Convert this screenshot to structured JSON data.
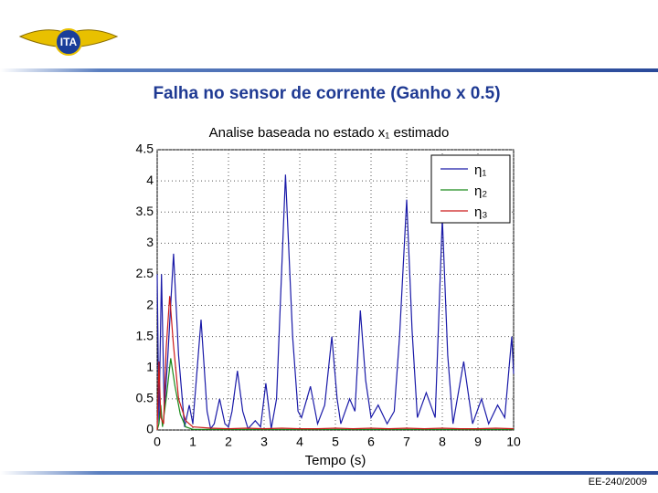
{
  "slide_title": "Falha no sensor de corrente (Ganho x 0.5)",
  "footer": "EE-240/2009",
  "chart_data": {
    "type": "line",
    "title": "Analise baseada no estado x₁ estimado",
    "x_label": "Tempo (s)",
    "xlim": [
      0,
      10
    ],
    "xticks": [
      0,
      1,
      2,
      3,
      4,
      5,
      6,
      7,
      8,
      9,
      10
    ],
    "ylim": [
      0,
      4.5
    ],
    "yticks": [
      0,
      0.5,
      1,
      1.5,
      2,
      2.5,
      3,
      3.5,
      4,
      4.5
    ],
    "grid": true,
    "legend": "upper right",
    "series": [
      {
        "name": "η₁",
        "color": "#1a1aa8",
        "x": [
          0,
          0.05,
          0.12,
          0.2,
          0.3,
          0.46,
          0.6,
          0.77,
          0.9,
          1.0,
          1.23,
          1.4,
          1.5,
          1.6,
          1.75,
          1.9,
          2.0,
          2.1,
          2.25,
          2.4,
          2.55,
          2.75,
          2.9,
          3.05,
          3.2,
          3.35,
          3.6,
          3.8,
          3.95,
          4.05,
          4.3,
          4.5,
          4.7,
          4.9,
          5.05,
          5.15,
          5.4,
          5.55,
          5.7,
          5.85,
          6.0,
          6.2,
          6.45,
          6.65,
          6.8,
          7.0,
          7.15,
          7.3,
          7.55,
          7.8,
          8.0,
          8.15,
          8.3,
          8.6,
          8.85,
          9.1,
          9.3,
          9.55,
          9.75,
          9.95,
          10
        ],
        "values": [
          2.5,
          0.1,
          2.5,
          0.3,
          1.2,
          2.83,
          1.2,
          0.05,
          0.4,
          0.1,
          1.77,
          0.3,
          0.02,
          0.1,
          0.5,
          0.1,
          0.05,
          0.3,
          0.95,
          0.3,
          0.02,
          0.15,
          0.05,
          0.75,
          0.02,
          0.5,
          4.1,
          1.5,
          0.3,
          0.2,
          0.7,
          0.1,
          0.4,
          1.5,
          0.5,
          0.1,
          0.5,
          0.3,
          1.92,
          0.8,
          0.2,
          0.4,
          0.1,
          0.3,
          1.5,
          3.7,
          1.6,
          0.2,
          0.6,
          0.2,
          3.4,
          1.2,
          0.1,
          1.1,
          0.1,
          0.5,
          0.1,
          0.4,
          0.2,
          1.5,
          0.9
        ]
      },
      {
        "name": "η₂",
        "color": "#1a8a1a",
        "x": [
          0,
          0.05,
          0.1,
          0.15,
          0.25,
          0.38,
          0.5,
          0.65,
          0.8,
          1.0,
          2,
          3,
          4,
          5,
          6,
          7,
          8,
          9,
          10
        ],
        "values": [
          0,
          0.1,
          0.4,
          0.05,
          0.5,
          1.15,
          0.7,
          0.25,
          0.05,
          0.01,
          0.01,
          0.01,
          0.01,
          0.01,
          0.01,
          0.01,
          0.01,
          0.01,
          0.01
        ]
      },
      {
        "name": "η₃",
        "color": "#cc1a1a",
        "x": [
          0,
          0.05,
          0.1,
          0.18,
          0.25,
          0.35,
          0.45,
          0.6,
          0.8,
          1.0,
          1.5,
          2,
          2.5,
          3,
          3.5,
          4,
          4.5,
          5,
          5.5,
          6,
          6.5,
          7,
          7.5,
          8,
          8.5,
          9,
          9.5,
          10
        ],
        "values": [
          0,
          1.1,
          0.2,
          0.1,
          1.3,
          2.15,
          1.4,
          0.5,
          0.15,
          0.05,
          0.03,
          0.02,
          0.03,
          0.02,
          0.03,
          0.02,
          0.02,
          0.03,
          0.02,
          0.03,
          0.02,
          0.03,
          0.02,
          0.03,
          0.02,
          0.02,
          0.03,
          0.02
        ]
      }
    ]
  }
}
